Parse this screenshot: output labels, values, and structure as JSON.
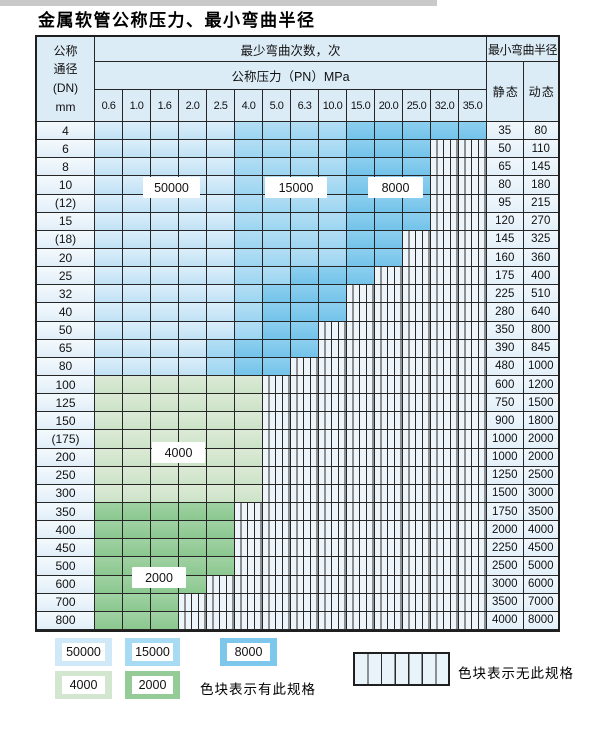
{
  "title": "金属软管公称压力、最小弯曲半径",
  "table": {
    "header": {
      "dn_lines": [
        "公称",
        "通径",
        "(DN)",
        "mm"
      ],
      "bend_cycles": "最少弯曲次数，次",
      "pressure": "公称压力（PN）MPa",
      "pressures": [
        "0.6",
        "1.0",
        "1.6",
        "2.0",
        "2.5",
        "4.0",
        "5.0",
        "6.3",
        "10.0",
        "15.0",
        "20.0",
        "25.0",
        "32.0",
        "35.0"
      ],
      "radius": "最小弯曲半径",
      "static": "静 态",
      "dynamic": "动 态"
    },
    "shade_legend": {
      "L": "50000",
      "M": "15000",
      "D": "8000",
      "F": "4000",
      "T": "2000",
      "H": "无此规格"
    },
    "overlay_labels": [
      {
        "text": "50000"
      },
      {
        "text": "15000"
      },
      {
        "text": "8000"
      },
      {
        "text": "4000"
      },
      {
        "text": "2000"
      }
    ],
    "rows": [
      {
        "dn": "4",
        "cells": "LLLLLMMMMDDDDD",
        "static": "35",
        "dynamic": "80"
      },
      {
        "dn": "6",
        "cells": "LLLLLMMMMDDDHH",
        "static": "50",
        "dynamic": "110"
      },
      {
        "dn": "8",
        "cells": "LLLLLMMMMDDDHH",
        "static": "65",
        "dynamic": "145"
      },
      {
        "dn": "10",
        "cells": "LLLLLMMMMDDDHH",
        "static": "80",
        "dynamic": "180"
      },
      {
        "dn": "(12)",
        "cells": "LLLLLMMMMDDDHH",
        "static": "95",
        "dynamic": "215"
      },
      {
        "dn": "15",
        "cells": "LLLLLMMMMDDDHH",
        "static": "120",
        "dynamic": "270"
      },
      {
        "dn": "(18)",
        "cells": "LLLLLMMMMDDHHH",
        "static": "145",
        "dynamic": "325"
      },
      {
        "dn": "20",
        "cells": "LLLLLMMMMDDHHH",
        "static": "160",
        "dynamic": "360"
      },
      {
        "dn": "25",
        "cells": "LLLLLMMDDDHHHH",
        "static": "175",
        "dynamic": "400"
      },
      {
        "dn": "32",
        "cells": "LLLLLMDDDHHHHH",
        "static": "225",
        "dynamic": "510"
      },
      {
        "dn": "40",
        "cells": "LLLLLMDDDHHHHH",
        "static": "280",
        "dynamic": "640"
      },
      {
        "dn": "50",
        "cells": "LLLLLMDDHHHHHH",
        "static": "350",
        "dynamic": "800"
      },
      {
        "dn": "65",
        "cells": "LLLLMDDDHHHHHH",
        "static": "390",
        "dynamic": "845"
      },
      {
        "dn": "80",
        "cells": "LLLLMDDHHHHHHH",
        "static": "480",
        "dynamic": "1000"
      },
      {
        "dn": "100",
        "cells": "FFFFFFHHHHHHHH",
        "static": "600",
        "dynamic": "1200"
      },
      {
        "dn": "125",
        "cells": "FFFFFFHHHHHHHH",
        "static": "750",
        "dynamic": "1500"
      },
      {
        "dn": "150",
        "cells": "FFFFFFHHHHHHHH",
        "static": "900",
        "dynamic": "1800"
      },
      {
        "dn": "(175)",
        "cells": "FFFFFFHHHHHHHH",
        "static": "1000",
        "dynamic": "2000"
      },
      {
        "dn": "200",
        "cells": "FFFFFFHHHHHHHH",
        "static": "1000",
        "dynamic": "2000"
      },
      {
        "dn": "250",
        "cells": "FFFFFFHHHHHHHH",
        "static": "1250",
        "dynamic": "2500"
      },
      {
        "dn": "300",
        "cells": "FFFFFFHHHHHHHH",
        "static": "1500",
        "dynamic": "3000"
      },
      {
        "dn": "350",
        "cells": "TTTTTHHHHHHHHH",
        "static": "1750",
        "dynamic": "3500"
      },
      {
        "dn": "400",
        "cells": "TTTTTHHHHHHHHH",
        "static": "2000",
        "dynamic": "4000"
      },
      {
        "dn": "450",
        "cells": "TTTTTHHHHHHHHH",
        "static": "2250",
        "dynamic": "4500"
      },
      {
        "dn": "500",
        "cells": "TTTTTHHHHHHHHH",
        "static": "2500",
        "dynamic": "5000"
      },
      {
        "dn": "600",
        "cells": "TTTTHHHHHHHHHH",
        "static": "3000",
        "dynamic": "6000"
      },
      {
        "dn": "700",
        "cells": "TTTHHHHHHHHHHH",
        "static": "3500",
        "dynamic": "7000"
      },
      {
        "dn": "800",
        "cells": "TTTHHHHHHHHHHH",
        "static": "4000",
        "dynamic": "8000"
      }
    ]
  },
  "legend": {
    "row1": [
      {
        "value": "50000",
        "shade": "L"
      },
      {
        "value": "15000",
        "shade": "M"
      },
      {
        "value": "8000",
        "shade": "D"
      }
    ],
    "row2": [
      {
        "value": "4000",
        "shade": "F"
      },
      {
        "value": "2000",
        "shade": "T"
      }
    ],
    "has_spec_text": "色块表示有此规格",
    "no_spec_text": "色块表示无此规格"
  },
  "colors": {
    "cycles_50000": "#cfe9f8",
    "cycles_15000": "#a7daf3",
    "cycles_8000": "#7ec7ec",
    "cycles_4000": "#d3e6cf",
    "cycles_2000": "#94cb97",
    "grid_line": "#262626"
  }
}
